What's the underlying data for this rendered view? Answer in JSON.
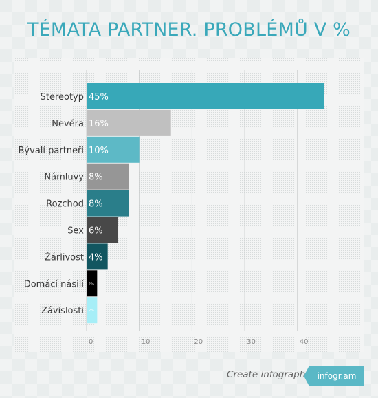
{
  "header": {
    "title": "TÉMATA PARTNER. PROBLÉMŮ V %"
  },
  "footer": {
    "text": "Create infographics",
    "brand": "infogr.am"
  },
  "chart_data": {
    "type": "bar",
    "orientation": "horizontal",
    "title": "TÉMATA PARTNER. PROBLÉMŮ V %",
    "categories": [
      "Stereotyp",
      "Nevěra",
      "Bývalí partneři",
      "Námluvy",
      "Rozchod",
      "Sex",
      "Žárlivost",
      "Domácí násilí",
      "Závislosti"
    ],
    "values": [
      45,
      16,
      10,
      8,
      8,
      6,
      4,
      2,
      2
    ],
    "data_labels": [
      "45%",
      "16%",
      "10%",
      "8%",
      "8%",
      "6%",
      "4%",
      "2%",
      "2%"
    ],
    "colors": [
      "#37a8b8",
      "#c0c0c0",
      "#5db9c6",
      "#969696",
      "#2a7e8a",
      "#484848",
      "#125660",
      "#000000",
      "#a6eef7"
    ],
    "label_colors": [
      "#ffffff",
      "#ffffff",
      "#ffffff",
      "#ffffff",
      "#ffffff",
      "#ffffff",
      "#ffffff",
      "#ffffff",
      "#ffffff"
    ],
    "xticks": [
      "0",
      "10",
      "20",
      "30",
      "40"
    ],
    "xlim": [
      0,
      50
    ],
    "grid": true
  }
}
